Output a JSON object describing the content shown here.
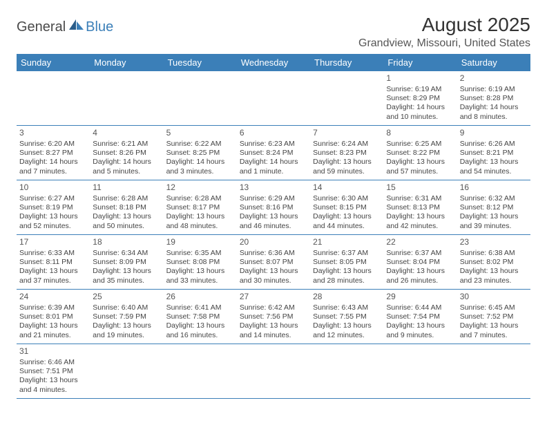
{
  "logo": {
    "text1": "General",
    "text2": "Blue"
  },
  "title": "August 2025",
  "location": "Grandview, Missouri, United States",
  "day_names": [
    "Sunday",
    "Monday",
    "Tuesday",
    "Wednesday",
    "Thursday",
    "Friday",
    "Saturday"
  ],
  "colors": {
    "header_bg": "#3b7fb8",
    "header_fg": "#ffffff",
    "border": "#3b7fb8",
    "text": "#444444",
    "logo_gray": "#4a4a4a",
    "logo_blue": "#3b7fb8"
  },
  "weeks": [
    [
      null,
      null,
      null,
      null,
      null,
      {
        "n": "1",
        "sunrise": "Sunrise: 6:19 AM",
        "sunset": "Sunset: 8:29 PM",
        "daylight": "Daylight: 14 hours and 10 minutes."
      },
      {
        "n": "2",
        "sunrise": "Sunrise: 6:19 AM",
        "sunset": "Sunset: 8:28 PM",
        "daylight": "Daylight: 14 hours and 8 minutes."
      }
    ],
    [
      {
        "n": "3",
        "sunrise": "Sunrise: 6:20 AM",
        "sunset": "Sunset: 8:27 PM",
        "daylight": "Daylight: 14 hours and 7 minutes."
      },
      {
        "n": "4",
        "sunrise": "Sunrise: 6:21 AM",
        "sunset": "Sunset: 8:26 PM",
        "daylight": "Daylight: 14 hours and 5 minutes."
      },
      {
        "n": "5",
        "sunrise": "Sunrise: 6:22 AM",
        "sunset": "Sunset: 8:25 PM",
        "daylight": "Daylight: 14 hours and 3 minutes."
      },
      {
        "n": "6",
        "sunrise": "Sunrise: 6:23 AM",
        "sunset": "Sunset: 8:24 PM",
        "daylight": "Daylight: 14 hours and 1 minute."
      },
      {
        "n": "7",
        "sunrise": "Sunrise: 6:24 AM",
        "sunset": "Sunset: 8:23 PM",
        "daylight": "Daylight: 13 hours and 59 minutes."
      },
      {
        "n": "8",
        "sunrise": "Sunrise: 6:25 AM",
        "sunset": "Sunset: 8:22 PM",
        "daylight": "Daylight: 13 hours and 57 minutes."
      },
      {
        "n": "9",
        "sunrise": "Sunrise: 6:26 AM",
        "sunset": "Sunset: 8:21 PM",
        "daylight": "Daylight: 13 hours and 54 minutes."
      }
    ],
    [
      {
        "n": "10",
        "sunrise": "Sunrise: 6:27 AM",
        "sunset": "Sunset: 8:19 PM",
        "daylight": "Daylight: 13 hours and 52 minutes."
      },
      {
        "n": "11",
        "sunrise": "Sunrise: 6:28 AM",
        "sunset": "Sunset: 8:18 PM",
        "daylight": "Daylight: 13 hours and 50 minutes."
      },
      {
        "n": "12",
        "sunrise": "Sunrise: 6:28 AM",
        "sunset": "Sunset: 8:17 PM",
        "daylight": "Daylight: 13 hours and 48 minutes."
      },
      {
        "n": "13",
        "sunrise": "Sunrise: 6:29 AM",
        "sunset": "Sunset: 8:16 PM",
        "daylight": "Daylight: 13 hours and 46 minutes."
      },
      {
        "n": "14",
        "sunrise": "Sunrise: 6:30 AM",
        "sunset": "Sunset: 8:15 PM",
        "daylight": "Daylight: 13 hours and 44 minutes."
      },
      {
        "n": "15",
        "sunrise": "Sunrise: 6:31 AM",
        "sunset": "Sunset: 8:13 PM",
        "daylight": "Daylight: 13 hours and 42 minutes."
      },
      {
        "n": "16",
        "sunrise": "Sunrise: 6:32 AM",
        "sunset": "Sunset: 8:12 PM",
        "daylight": "Daylight: 13 hours and 39 minutes."
      }
    ],
    [
      {
        "n": "17",
        "sunrise": "Sunrise: 6:33 AM",
        "sunset": "Sunset: 8:11 PM",
        "daylight": "Daylight: 13 hours and 37 minutes."
      },
      {
        "n": "18",
        "sunrise": "Sunrise: 6:34 AM",
        "sunset": "Sunset: 8:09 PM",
        "daylight": "Daylight: 13 hours and 35 minutes."
      },
      {
        "n": "19",
        "sunrise": "Sunrise: 6:35 AM",
        "sunset": "Sunset: 8:08 PM",
        "daylight": "Daylight: 13 hours and 33 minutes."
      },
      {
        "n": "20",
        "sunrise": "Sunrise: 6:36 AM",
        "sunset": "Sunset: 8:07 PM",
        "daylight": "Daylight: 13 hours and 30 minutes."
      },
      {
        "n": "21",
        "sunrise": "Sunrise: 6:37 AM",
        "sunset": "Sunset: 8:05 PM",
        "daylight": "Daylight: 13 hours and 28 minutes."
      },
      {
        "n": "22",
        "sunrise": "Sunrise: 6:37 AM",
        "sunset": "Sunset: 8:04 PM",
        "daylight": "Daylight: 13 hours and 26 minutes."
      },
      {
        "n": "23",
        "sunrise": "Sunrise: 6:38 AM",
        "sunset": "Sunset: 8:02 PM",
        "daylight": "Daylight: 13 hours and 23 minutes."
      }
    ],
    [
      {
        "n": "24",
        "sunrise": "Sunrise: 6:39 AM",
        "sunset": "Sunset: 8:01 PM",
        "daylight": "Daylight: 13 hours and 21 minutes."
      },
      {
        "n": "25",
        "sunrise": "Sunrise: 6:40 AM",
        "sunset": "Sunset: 7:59 PM",
        "daylight": "Daylight: 13 hours and 19 minutes."
      },
      {
        "n": "26",
        "sunrise": "Sunrise: 6:41 AM",
        "sunset": "Sunset: 7:58 PM",
        "daylight": "Daylight: 13 hours and 16 minutes."
      },
      {
        "n": "27",
        "sunrise": "Sunrise: 6:42 AM",
        "sunset": "Sunset: 7:56 PM",
        "daylight": "Daylight: 13 hours and 14 minutes."
      },
      {
        "n": "28",
        "sunrise": "Sunrise: 6:43 AM",
        "sunset": "Sunset: 7:55 PM",
        "daylight": "Daylight: 13 hours and 12 minutes."
      },
      {
        "n": "29",
        "sunrise": "Sunrise: 6:44 AM",
        "sunset": "Sunset: 7:54 PM",
        "daylight": "Daylight: 13 hours and 9 minutes."
      },
      {
        "n": "30",
        "sunrise": "Sunrise: 6:45 AM",
        "sunset": "Sunset: 7:52 PM",
        "daylight": "Daylight: 13 hours and 7 minutes."
      }
    ],
    [
      {
        "n": "31",
        "sunrise": "Sunrise: 6:46 AM",
        "sunset": "Sunset: 7:51 PM",
        "daylight": "Daylight: 13 hours and 4 minutes."
      },
      null,
      null,
      null,
      null,
      null,
      null
    ]
  ]
}
